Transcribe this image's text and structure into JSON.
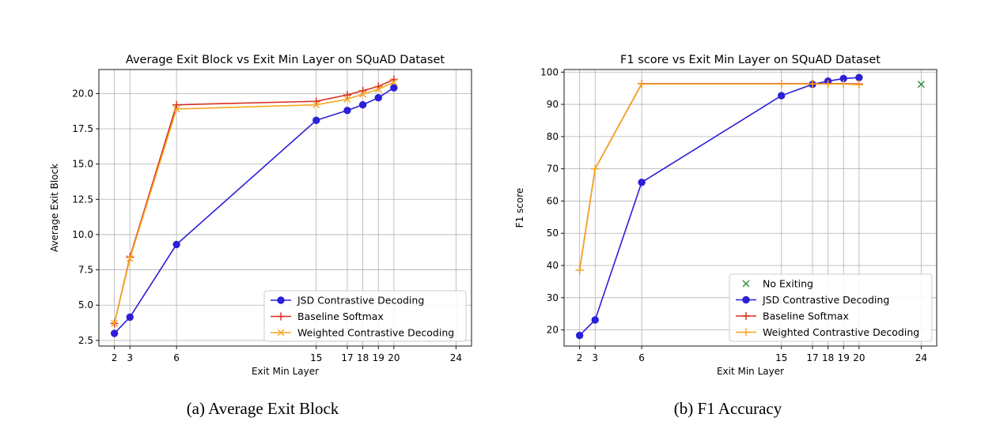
{
  "captions": {
    "a": "(a) Average Exit Block",
    "b": "(b) F1 Accuracy"
  },
  "chart_data": [
    {
      "type": "line",
      "title": "Average Exit Block vs Exit Min Layer on SQuAD Dataset",
      "xlabel": "Exit Min Layer",
      "ylabel": "Average Exit Block",
      "xlim": [
        1.0,
        25.0
      ],
      "ylim": [
        2.1,
        21.7
      ],
      "xticks": [
        2,
        3,
        6,
        15,
        17,
        18,
        19,
        20,
        24
      ],
      "yticks": [
        2.5,
        5.0,
        7.5,
        10.0,
        12.5,
        15.0,
        17.5,
        20.0
      ],
      "ytick_labels": [
        "2.5",
        "5.0",
        "7.5",
        "10.0",
        "12.5",
        "15.0",
        "17.5",
        "20.0"
      ],
      "grid": true,
      "legend_position": "lower-right",
      "series": [
        {
          "name": "JSD Contrastive Decoding",
          "color": "#2b1fd8",
          "marker": "circle",
          "x": [
            2,
            3,
            6,
            15,
            17,
            18,
            19,
            20
          ],
          "y": [
            3.0,
            4.15,
            9.3,
            18.1,
            18.8,
            19.2,
            19.7,
            20.4
          ]
        },
        {
          "name": "Baseline Softmax",
          "color": "#d62f1f",
          "marker": "plus",
          "x": [
            2,
            3,
            6,
            15,
            17,
            18,
            19,
            20
          ],
          "y": [
            3.7,
            8.4,
            19.2,
            19.45,
            19.9,
            20.2,
            20.5,
            21.0
          ]
        },
        {
          "name": "Weighted Contrastive Decoding",
          "color": "#f5a623",
          "marker": "x",
          "x": [
            2,
            3,
            6,
            15,
            17,
            18,
            19,
            20
          ],
          "y": [
            3.7,
            8.3,
            18.9,
            19.2,
            19.6,
            19.95,
            20.3,
            20.8
          ]
        }
      ]
    },
    {
      "type": "line",
      "title": "F1 score vs Exit Min Layer on SQuAD Dataset",
      "xlabel": "Exit Min Layer",
      "ylabel": "F1 score",
      "xlim": [
        1.0,
        25.0
      ],
      "ylim": [
        15.0,
        100.8
      ],
      "xticks": [
        2,
        3,
        6,
        15,
        17,
        18,
        19,
        20,
        24
      ],
      "yticks": [
        20,
        30,
        40,
        50,
        60,
        70,
        80,
        90,
        100
      ],
      "ytick_labels": [
        "20",
        "30",
        "40",
        "50",
        "60",
        "70",
        "80",
        "90",
        "100"
      ],
      "grid": true,
      "legend_position": "lower-right",
      "series": [
        {
          "name": "No Exiting",
          "color": "#2e8b2e",
          "marker": "x",
          "line": false,
          "x": [
            24
          ],
          "y": [
            96.2
          ]
        },
        {
          "name": "JSD Contrastive Decoding",
          "color": "#2b1fd8",
          "marker": "circle",
          "x": [
            2,
            3,
            6,
            15,
            17,
            18,
            19,
            20
          ],
          "y": [
            18.3,
            23.1,
            65.8,
            92.7,
            96.2,
            97.2,
            98.0,
            98.3
          ]
        },
        {
          "name": "Baseline Softmax",
          "color": "#d62f1f",
          "marker": "plus",
          "x": [
            2,
            3,
            6,
            15,
            17,
            18,
            19,
            20
          ],
          "y": [
            38.6,
            70.0,
            96.4,
            96.4,
            96.4,
            96.4,
            96.4,
            96.3
          ]
        },
        {
          "name": "Weighted Contrastive Decoding",
          "color": "#f5a623",
          "marker": "plus",
          "x": [
            2,
            3,
            6,
            15,
            17,
            18,
            19,
            20
          ],
          "y": [
            38.6,
            70.0,
            96.3,
            96.3,
            96.3,
            96.3,
            96.3,
            96.1
          ]
        }
      ]
    }
  ]
}
